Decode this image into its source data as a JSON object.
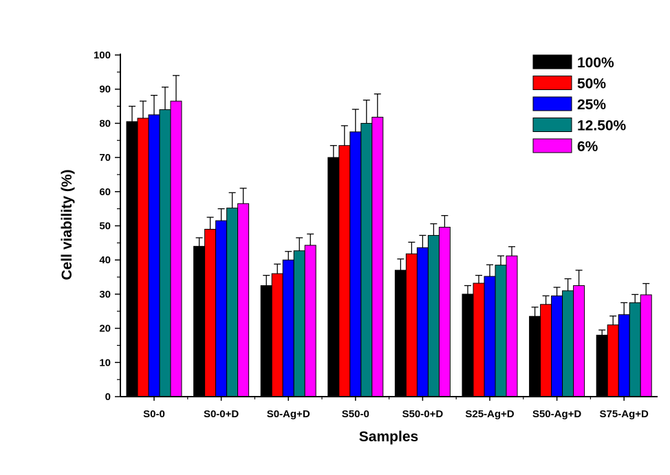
{
  "chart_data": {
    "type": "bar",
    "xlabel": "Samples",
    "ylabel": "Cell viability (%)",
    "ylim": [
      0,
      100
    ],
    "yticks": [
      0,
      10,
      20,
      30,
      40,
      50,
      60,
      70,
      80,
      90,
      100
    ],
    "grid": false,
    "legend_position": "top-right",
    "categories": [
      "S0-0",
      "S0-0+D",
      "S0-Ag+D",
      "S50-0",
      "S50-0+D",
      "S25-Ag+D",
      "S50-Ag+D",
      "S75-Ag+D"
    ],
    "series": [
      {
        "name": "100%",
        "color": "#000000",
        "values": [
          80.5,
          44,
          32.5,
          70,
          37,
          30,
          23.5,
          18
        ],
        "errors": [
          4.5,
          2.5,
          3,
          3.5,
          3.3,
          2.5,
          2.7,
          1.5
        ]
      },
      {
        "name": "50%",
        "color": "#ff0000",
        "values": [
          81.5,
          49,
          36,
          73.5,
          41.8,
          33.2,
          27,
          21
        ],
        "errors": [
          5,
          3.5,
          2.8,
          5.8,
          3.4,
          2.3,
          2.5,
          2.6
        ]
      },
      {
        "name": "25%",
        "color": "#0000ff",
        "values": [
          82.5,
          51.5,
          40,
          77.5,
          43.6,
          35.2,
          29.5,
          24
        ],
        "errors": [
          5.7,
          3.5,
          2.5,
          6.6,
          3.6,
          3.4,
          2.5,
          3.5
        ]
      },
      {
        "name": "12.50%",
        "color": "#008080",
        "values": [
          84,
          55.2,
          42.7,
          80,
          47.2,
          38.5,
          31,
          27.5
        ],
        "errors": [
          6.6,
          4.5,
          3.8,
          6.8,
          3.4,
          2.7,
          3.5,
          2.4
        ]
      },
      {
        "name": "6%",
        "color": "#ff00ff",
        "values": [
          86.5,
          56.5,
          44.3,
          81.8,
          49.6,
          41.2,
          32.5,
          29.8
        ],
        "errors": [
          7.5,
          4.5,
          3.3,
          6.8,
          3.4,
          2.7,
          4.5,
          3.3
        ]
      }
    ]
  }
}
